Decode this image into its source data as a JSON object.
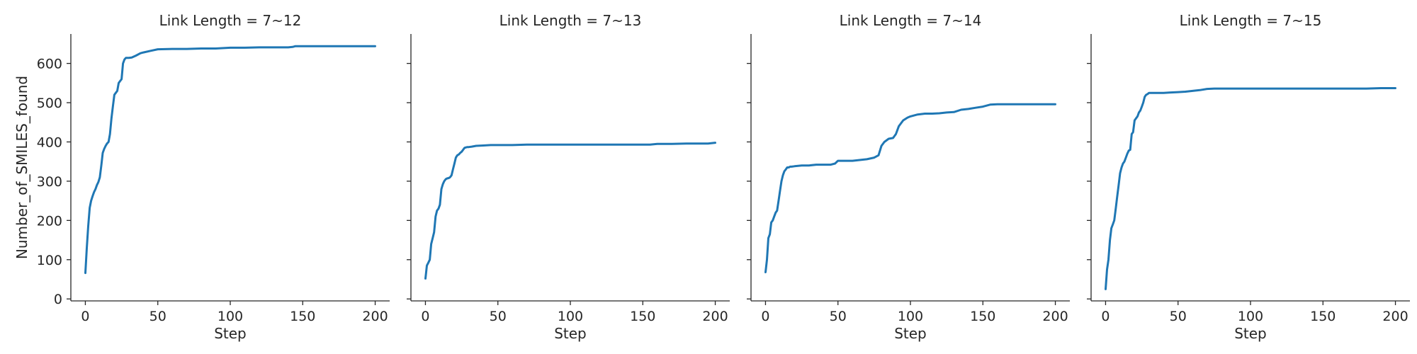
{
  "chart_data": [
    {
      "type": "line",
      "title": "Link Length = 7~12",
      "xlabel": "Step",
      "ylabel": "Number_of_SMILES_found",
      "xlim": [
        -10,
        210
      ],
      "ylim": [
        -5,
        675
      ],
      "xticks": [
        0,
        50,
        100,
        150,
        200
      ],
      "yticks": [
        0,
        100,
        200,
        300,
        400,
        500,
        600
      ],
      "show_yticklabels": true,
      "grid": false,
      "color": "#1f77b4",
      "x": [
        0,
        1,
        2,
        3,
        4,
        5,
        6,
        7,
        8,
        9,
        10,
        11,
        12,
        13,
        14,
        15,
        16,
        17,
        18,
        19,
        20,
        21,
        22,
        23,
        24,
        25,
        26,
        27,
        28,
        29,
        30,
        32,
        35,
        38,
        40,
        45,
        50,
        60,
        70,
        80,
        90,
        100,
        110,
        120,
        130,
        140,
        143,
        145,
        150,
        160,
        170,
        180,
        190,
        200
      ],
      "y": [
        66,
        130,
        185,
        232,
        250,
        262,
        272,
        280,
        290,
        298,
        310,
        340,
        372,
        382,
        390,
        396,
        400,
        420,
        460,
        490,
        520,
        525,
        530,
        550,
        555,
        560,
        600,
        610,
        614,
        614,
        614,
        615,
        620,
        626,
        628,
        632,
        636,
        637,
        637,
        638,
        638,
        640,
        640,
        641,
        641,
        641,
        642,
        644,
        644,
        644,
        644,
        644,
        644,
        644
      ]
    },
    {
      "type": "line",
      "title": "Link Length = 7~13",
      "xlabel": "Step",
      "ylabel": "",
      "xlim": [
        -10,
        210
      ],
      "ylim": [
        -5,
        675
      ],
      "xticks": [
        0,
        50,
        100,
        150,
        200
      ],
      "yticks": [
        0,
        100,
        200,
        300,
        400,
        500,
        600
      ],
      "show_yticklabels": false,
      "grid": false,
      "color": "#1f77b4",
      "x": [
        0,
        1,
        2,
        3,
        4,
        5,
        6,
        7,
        8,
        9,
        10,
        11,
        12,
        13,
        14,
        15,
        16,
        17,
        18,
        19,
        20,
        21,
        22,
        23,
        24,
        25,
        26,
        27,
        28,
        29,
        30,
        32,
        35,
        40,
        45,
        50,
        60,
        70,
        80,
        100,
        120,
        140,
        155,
        160,
        170,
        180,
        190,
        195,
        200
      ],
      "y": [
        52,
        85,
        92,
        100,
        140,
        155,
        170,
        210,
        225,
        230,
        240,
        280,
        292,
        300,
        305,
        307,
        308,
        310,
        315,
        330,
        345,
        360,
        366,
        368,
        372,
        375,
        380,
        385,
        386,
        387,
        387,
        388,
        390,
        391,
        392,
        392,
        392,
        393,
        393,
        393,
        393,
        393,
        393,
        395,
        395,
        396,
        396,
        396,
        398
      ]
    },
    {
      "type": "line",
      "title": "Link Length = 7~14",
      "xlabel": "Step",
      "ylabel": "",
      "xlim": [
        -10,
        210
      ],
      "ylim": [
        -5,
        675
      ],
      "xticks": [
        0,
        50,
        100,
        150,
        200
      ],
      "yticks": [
        0,
        100,
        200,
        300,
        400,
        500,
        600
      ],
      "show_yticklabels": false,
      "grid": false,
      "color": "#1f77b4",
      "x": [
        0,
        1,
        2,
        3,
        4,
        5,
        6,
        7,
        8,
        9,
        10,
        11,
        12,
        13,
        14,
        15,
        16,
        17,
        18,
        20,
        25,
        30,
        35,
        40,
        45,
        48,
        50,
        55,
        60,
        65,
        70,
        75,
        78,
        80,
        82,
        85,
        88,
        90,
        92,
        95,
        98,
        100,
        105,
        110,
        115,
        120,
        125,
        130,
        135,
        140,
        145,
        150,
        155,
        160,
        180,
        200
      ],
      "y": [
        68,
        100,
        155,
        165,
        195,
        200,
        210,
        220,
        225,
        250,
        275,
        300,
        315,
        325,
        330,
        335,
        335,
        337,
        337,
        338,
        340,
        340,
        342,
        342,
        342,
        345,
        352,
        352,
        352,
        354,
        356,
        360,
        366,
        390,
        400,
        408,
        410,
        420,
        440,
        455,
        462,
        465,
        470,
        472,
        472,
        473,
        475,
        476,
        482,
        484,
        487,
        490,
        495,
        496,
        496,
        496
      ]
    },
    {
      "type": "line",
      "title": "Link Length = 7~15",
      "xlabel": "Step",
      "ylabel": "",
      "xlim": [
        -10,
        210
      ],
      "ylim": [
        -5,
        675
      ],
      "xticks": [
        0,
        50,
        100,
        150,
        200
      ],
      "yticks": [
        0,
        100,
        200,
        300,
        400,
        500,
        600
      ],
      "show_yticklabels": false,
      "grid": false,
      "color": "#1f77b4",
      "x": [
        0,
        1,
        2,
        3,
        4,
        5,
        6,
        7,
        8,
        9,
        10,
        11,
        12,
        13,
        14,
        15,
        16,
        17,
        18,
        19,
        20,
        21,
        22,
        23,
        24,
        25,
        26,
        27,
        28,
        29,
        30,
        32,
        35,
        40,
        45,
        50,
        55,
        60,
        65,
        70,
        75,
        80,
        100,
        120,
        150,
        180,
        190,
        200
      ],
      "y": [
        25,
        75,
        100,
        150,
        180,
        190,
        200,
        230,
        260,
        290,
        320,
        335,
        345,
        350,
        360,
        370,
        378,
        380,
        420,
        425,
        455,
        460,
        465,
        475,
        480,
        490,
        500,
        515,
        520,
        522,
        525,
        525,
        525,
        525,
        526,
        527,
        528,
        530,
        532,
        535,
        536,
        536,
        536,
        536,
        536,
        536,
        537,
        537
      ]
    }
  ]
}
